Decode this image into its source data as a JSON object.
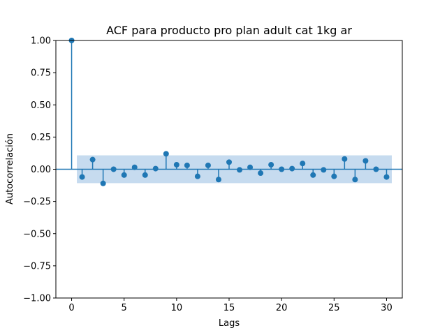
{
  "chart_data": {
    "type": "stem",
    "title": "ACF para producto pro plan adult cat 1kg ar",
    "xlabel": "Lags",
    "ylabel": "Autocorrelación",
    "xlim": [
      -1.5,
      31.5
    ],
    "ylim": [
      -1.0,
      1.0
    ],
    "xticks": [
      0,
      5,
      10,
      15,
      20,
      25,
      30
    ],
    "xtick_labels": [
      "0",
      "5",
      "10",
      "15",
      "20",
      "25",
      "30"
    ],
    "yticks": [
      -1.0,
      -0.75,
      -0.5,
      -0.25,
      0.0,
      0.25,
      0.5,
      0.75,
      1.0
    ],
    "ytick_labels": [
      "−1.00",
      "−0.75",
      "−0.50",
      "−0.25",
      "0.00",
      "0.25",
      "0.50",
      "0.75",
      "1.00"
    ],
    "lags": [
      0,
      1,
      2,
      3,
      4,
      5,
      6,
      7,
      8,
      9,
      10,
      11,
      12,
      13,
      14,
      15,
      16,
      17,
      18,
      19,
      20,
      21,
      22,
      23,
      24,
      25,
      26,
      27,
      28,
      29,
      30
    ],
    "values": [
      1.0,
      -0.06,
      0.075,
      -0.11,
      0.0,
      -0.045,
      0.015,
      -0.045,
      0.005,
      0.12,
      0.035,
      0.03,
      -0.055,
      0.03,
      -0.08,
      0.055,
      -0.005,
      0.015,
      -0.03,
      0.035,
      0.0,
      0.005,
      0.045,
      -0.045,
      -0.005,
      -0.055,
      0.08,
      -0.08,
      0.065,
      0.0,
      -0.06
    ],
    "confidence_band": {
      "x_start": 0.5,
      "x_end": 30.5,
      "upper": 0.108,
      "lower": -0.108
    },
    "grid": false,
    "colors": {
      "series": "#1f77b4",
      "band": "#c6dbef"
    }
  }
}
